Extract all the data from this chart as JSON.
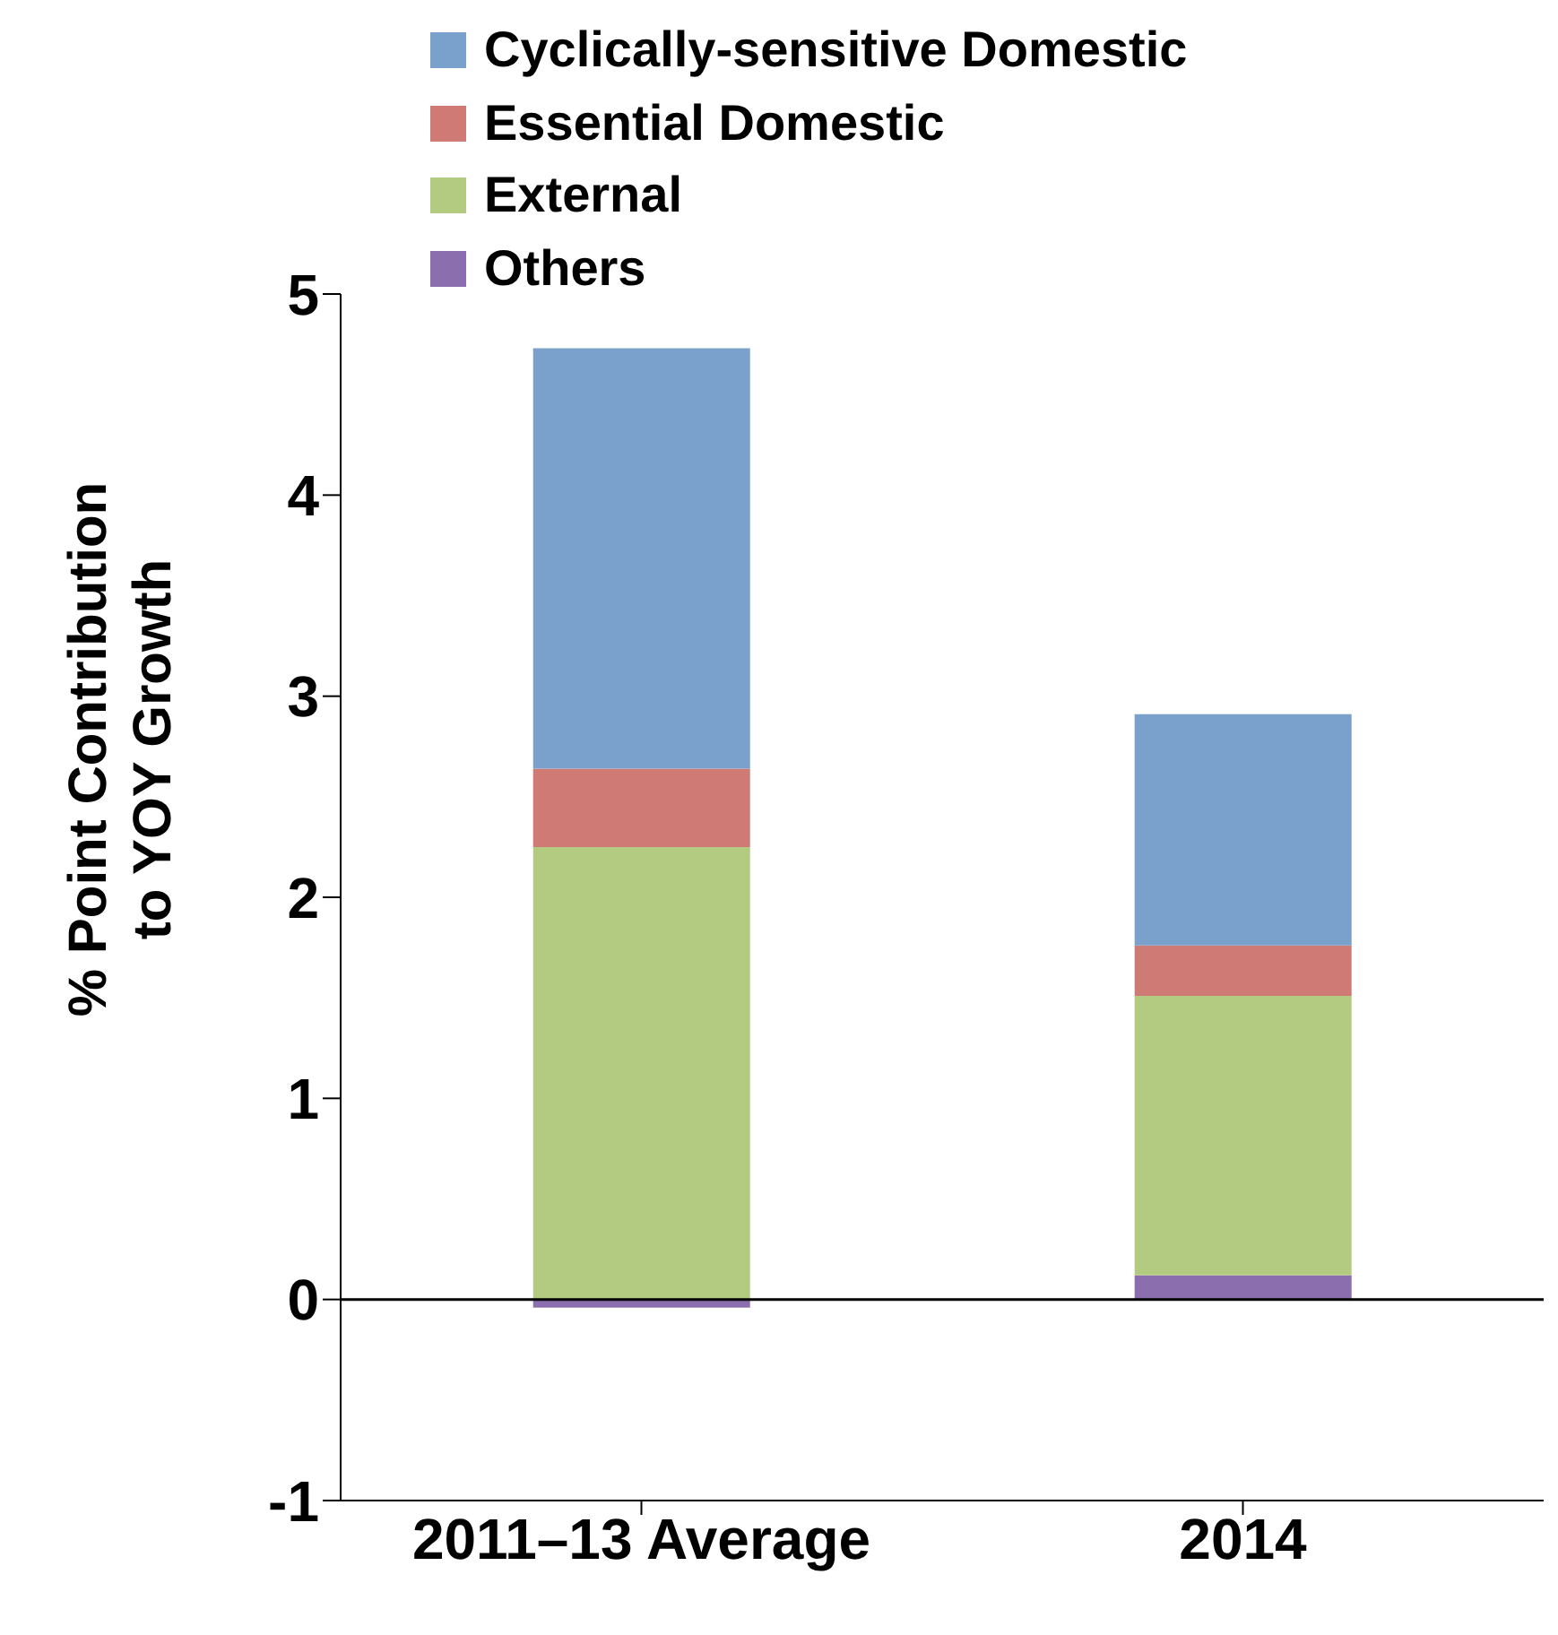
{
  "chart_data": {
    "type": "bar",
    "stacked": true,
    "categories": [
      "2011–13 Average",
      "2014"
    ],
    "series": [
      {
        "name": "Others",
        "color": "#8a6ead",
        "values": [
          -0.04,
          0.12
        ]
      },
      {
        "name": "External",
        "color": "#b3cb80",
        "values": [
          2.25,
          1.39
        ]
      },
      {
        "name": "Essential Domestic",
        "color": "#d07a76",
        "values": [
          0.39,
          0.25
        ]
      },
      {
        "name": "Cyclically-sensitive Domestic",
        "color": "#7aa0cc",
        "values": [
          2.09,
          1.15
        ]
      }
    ],
    "ylabel": "% Point Contribution to YOY Growth",
    "ylim": [
      -1,
      5
    ],
    "yticks": [
      -1,
      0,
      1,
      2,
      3,
      4,
      5
    ],
    "ref_lines": [
      {
        "axis": "y",
        "value": 0,
        "color": "#000000"
      }
    ],
    "legend": "top",
    "grid": false
  }
}
